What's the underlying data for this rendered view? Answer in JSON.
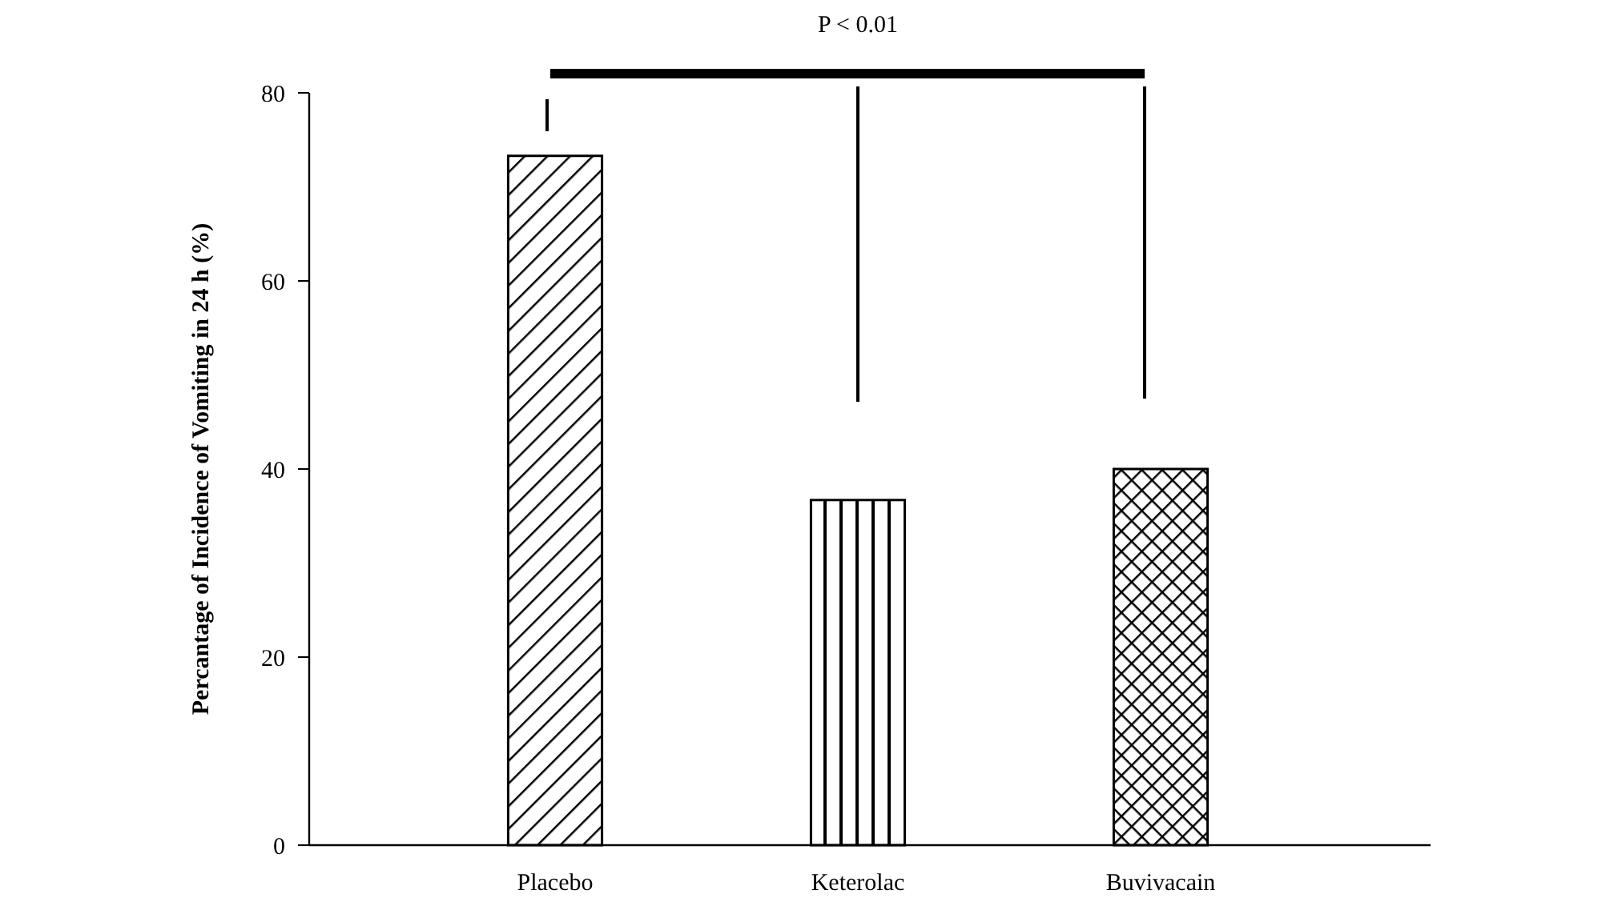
{
  "chart_data": {
    "type": "bar",
    "ylabel": "Percantage of Incidence of Vomiting in 24 h (%)",
    "categories": [
      "Placebo",
      "Keterolac",
      "Buvivacain"
    ],
    "values": [
      73.3,
      36.7,
      40
    ],
    "color": "#000000",
    "ylim": [
      0,
      80
    ],
    "yticks": [
      0,
      20,
      40,
      60,
      80
    ],
    "grid": false,
    "annotations": [
      "P < 0.01"
    ]
  }
}
